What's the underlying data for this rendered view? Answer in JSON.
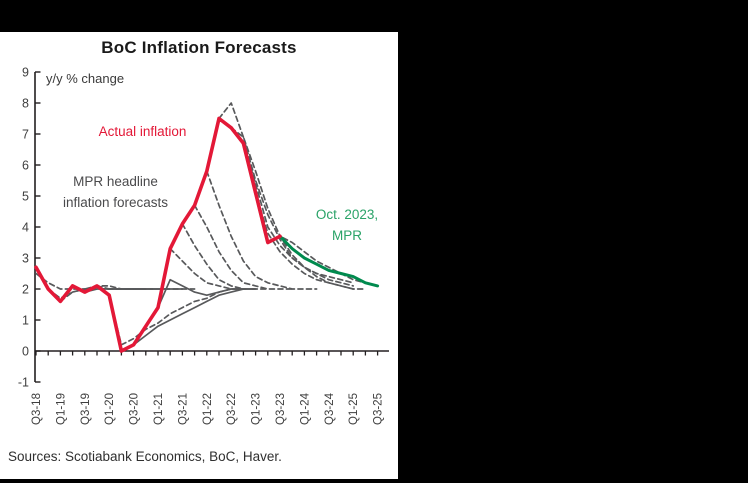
{
  "colors": {
    "background": "#000000",
    "card": "#ffffff",
    "actual_red": "#e31837",
    "mpr_green_line": "#008a4e",
    "mpr_green_text": "#2aa368",
    "forecast_gray": "#58595b",
    "axis": "#231f20",
    "tick_text": "#3f3f3f"
  },
  "chart_data": {
    "type": "line",
    "title": "BoC Inflation Forecasts",
    "units_label": "y/y % change",
    "source_note": "Sources: Scotiabank Economics, BoC, Haver.",
    "ylim": [
      -1,
      9
    ],
    "y_ticks": [
      9,
      8,
      7,
      6,
      5,
      4,
      3,
      2,
      1,
      0,
      -1
    ],
    "x_tick_labels": [
      "Q3-18",
      "Q1-19",
      "Q3-19",
      "Q1-20",
      "Q3-20",
      "Q1-21",
      "Q3-21",
      "Q1-22",
      "Q3-22",
      "Q1-23",
      "Q3-23",
      "Q1-24",
      "Q3-24",
      "Q1-25",
      "Q3-25"
    ],
    "categories": [
      "Q3-18",
      "Q4-18",
      "Q1-19",
      "Q2-19",
      "Q3-19",
      "Q4-19",
      "Q1-20",
      "Q2-20",
      "Q3-20",
      "Q4-20",
      "Q1-21",
      "Q2-21",
      "Q3-21",
      "Q4-21",
      "Q1-22",
      "Q2-22",
      "Q3-22",
      "Q4-22",
      "Q1-23",
      "Q2-23",
      "Q3-23",
      "Q4-23",
      "Q1-24",
      "Q2-24",
      "Q3-24",
      "Q4-24",
      "Q1-25",
      "Q2-25",
      "Q3-25"
    ],
    "annotations": {
      "actual": "Actual inflation",
      "mpr_line1": "MPR headline",
      "mpr_line2": "inflation forecasts",
      "green_line1": "Oct. 2023,",
      "green_line2": "MPR"
    },
    "legend_position": "none",
    "grid": false,
    "series": [
      {
        "name": "actual-inflation",
        "role": "actual",
        "color": "#e31837",
        "style": "solid",
        "width": 3.6,
        "start": 0,
        "values": [
          2.7,
          2.0,
          1.6,
          2.1,
          1.9,
          2.1,
          1.8,
          0.0,
          0.2,
          0.8,
          1.4,
          3.3,
          4.1,
          4.7,
          5.8,
          7.5,
          7.2,
          6.7,
          5.1,
          3.5,
          3.7
        ]
      },
      {
        "name": "oct-2023-mpr",
        "role": "current-forecast",
        "color": "#008a4e",
        "style": "solid",
        "width": 3,
        "start": 16,
        "values": [
          7.2,
          6.7,
          5.1,
          3.5,
          3.7,
          3.3,
          3.0,
          2.8,
          2.6,
          2.5,
          2.4,
          2.2,
          2.1
        ]
      },
      {
        "name": "past-forecast-01",
        "role": "past-forecast",
        "color": "#58595b",
        "style": "dashed",
        "width": 1.7,
        "start": 0,
        "values": [
          2.5,
          2.2,
          2.0,
          2.0,
          2.0,
          2.0,
          2.0,
          2.0,
          2.0
        ]
      },
      {
        "name": "past-forecast-02",
        "role": "past-forecast",
        "color": "#58595b",
        "style": "dashed",
        "width": 1.7,
        "start": 1,
        "values": [
          2.0,
          1.7,
          1.9,
          2.0,
          2.1,
          2.1,
          2.0,
          2.0,
          2.0
        ]
      },
      {
        "name": "past-forecast-03",
        "role": "past-forecast",
        "color": "#58595b",
        "style": "dashed",
        "width": 1.7,
        "start": 2,
        "values": [
          1.6,
          1.9,
          2.0,
          2.0,
          2.0,
          2.0,
          2.0,
          2.0,
          2.0
        ]
      },
      {
        "name": "past-forecast-04",
        "role": "past-forecast",
        "color": "#58595b",
        "style": "solid",
        "width": 1.7,
        "start": 4,
        "values": [
          1.9,
          2.0,
          2.0,
          2.0,
          2.0,
          2.0,
          2.0,
          2.0,
          2.0
        ]
      },
      {
        "name": "past-forecast-05",
        "role": "past-forecast",
        "color": "#58595b",
        "style": "dashed",
        "width": 1.7,
        "start": 5,
        "values": [
          2.1,
          2.0,
          2.0,
          2.0,
          2.0,
          2.0,
          2.0,
          2.0,
          2.0
        ]
      },
      {
        "name": "past-forecast-06",
        "role": "past-forecast",
        "color": "#58595b",
        "style": "dashed",
        "width": 1.7,
        "start": 6,
        "values": [
          1.8,
          0.2,
          0.4,
          0.7,
          0.9,
          1.2,
          1.4,
          1.6,
          1.7,
          1.9,
          2.0
        ]
      },
      {
        "name": "past-forecast-07",
        "role": "past-forecast",
        "color": "#58595b",
        "style": "solid",
        "width": 1.7,
        "start": 8,
        "values": [
          0.2,
          0.5,
          0.8,
          1.0,
          1.2,
          1.4,
          1.6,
          1.8,
          1.9,
          2.0
        ]
      },
      {
        "name": "past-forecast-08",
        "role": "past-forecast",
        "color": "#58595b",
        "style": "solid",
        "width": 1.7,
        "start": 10,
        "values": [
          1.4,
          2.3,
          2.1,
          1.9,
          1.8,
          1.9,
          2.0,
          2.0,
          2.0
        ]
      },
      {
        "name": "past-forecast-09",
        "role": "past-forecast",
        "color": "#58595b",
        "style": "dashed",
        "width": 1.7,
        "start": 11,
        "values": [
          3.3,
          2.9,
          2.5,
          2.2,
          2.1,
          2.0,
          2.0,
          2.0
        ]
      },
      {
        "name": "past-forecast-10",
        "role": "past-forecast",
        "color": "#58595b",
        "style": "dashed",
        "width": 1.7,
        "start": 12,
        "values": [
          4.1,
          3.4,
          2.8,
          2.3,
          2.1,
          2.0,
          2.0,
          2.0
        ]
      },
      {
        "name": "past-forecast-11",
        "role": "past-forecast",
        "color": "#58595b",
        "style": "dashed",
        "width": 1.7,
        "start": 13,
        "values": [
          4.7,
          4.0,
          3.2,
          2.6,
          2.2,
          2.1,
          2.0,
          2.0,
          2.0
        ]
      },
      {
        "name": "past-forecast-12",
        "role": "past-forecast",
        "color": "#58595b",
        "style": "dashed",
        "width": 1.7,
        "start": 14,
        "values": [
          5.8,
          4.7,
          3.7,
          2.9,
          2.4,
          2.2,
          2.1,
          2.0,
          2.0,
          2.0
        ]
      },
      {
        "name": "past-forecast-13",
        "role": "past-forecast",
        "color": "#58595b",
        "style": "dashed",
        "width": 1.7,
        "start": 15,
        "values": [
          7.5,
          8.0,
          6.9,
          5.5,
          4.4,
          3.6,
          3.0,
          2.7,
          2.5,
          2.4,
          2.3,
          2.2
        ]
      },
      {
        "name": "past-forecast-14",
        "role": "past-forecast",
        "color": "#58595b",
        "style": "dashed",
        "width": 1.7,
        "start": 16,
        "values": [
          7.2,
          6.9,
          5.8,
          4.6,
          3.7,
          3.1,
          2.7,
          2.5,
          2.3,
          2.2,
          2.1
        ]
      },
      {
        "name": "past-forecast-15",
        "role": "past-forecast",
        "color": "#58595b",
        "style": "dashed",
        "width": 1.7,
        "start": 17,
        "values": [
          6.7,
          5.4,
          4.0,
          3.4,
          3.0,
          2.7,
          2.4,
          2.2,
          2.1,
          2.0
        ]
      },
      {
        "name": "past-forecast-16",
        "role": "past-forecast",
        "color": "#58595b",
        "style": "dashed",
        "width": 1.7,
        "start": 18,
        "values": [
          5.1,
          3.8,
          3.2,
          2.8,
          2.5,
          2.3,
          2.2,
          2.1,
          2.0,
          2.0
        ]
      },
      {
        "name": "past-forecast-17",
        "role": "past-forecast",
        "color": "#58595b",
        "style": "dashed",
        "width": 1.7,
        "start": 19,
        "values": [
          3.5,
          3.7,
          3.5,
          3.2,
          2.9,
          2.7,
          2.5,
          2.3,
          2.2,
          2.1
        ]
      }
    ]
  }
}
